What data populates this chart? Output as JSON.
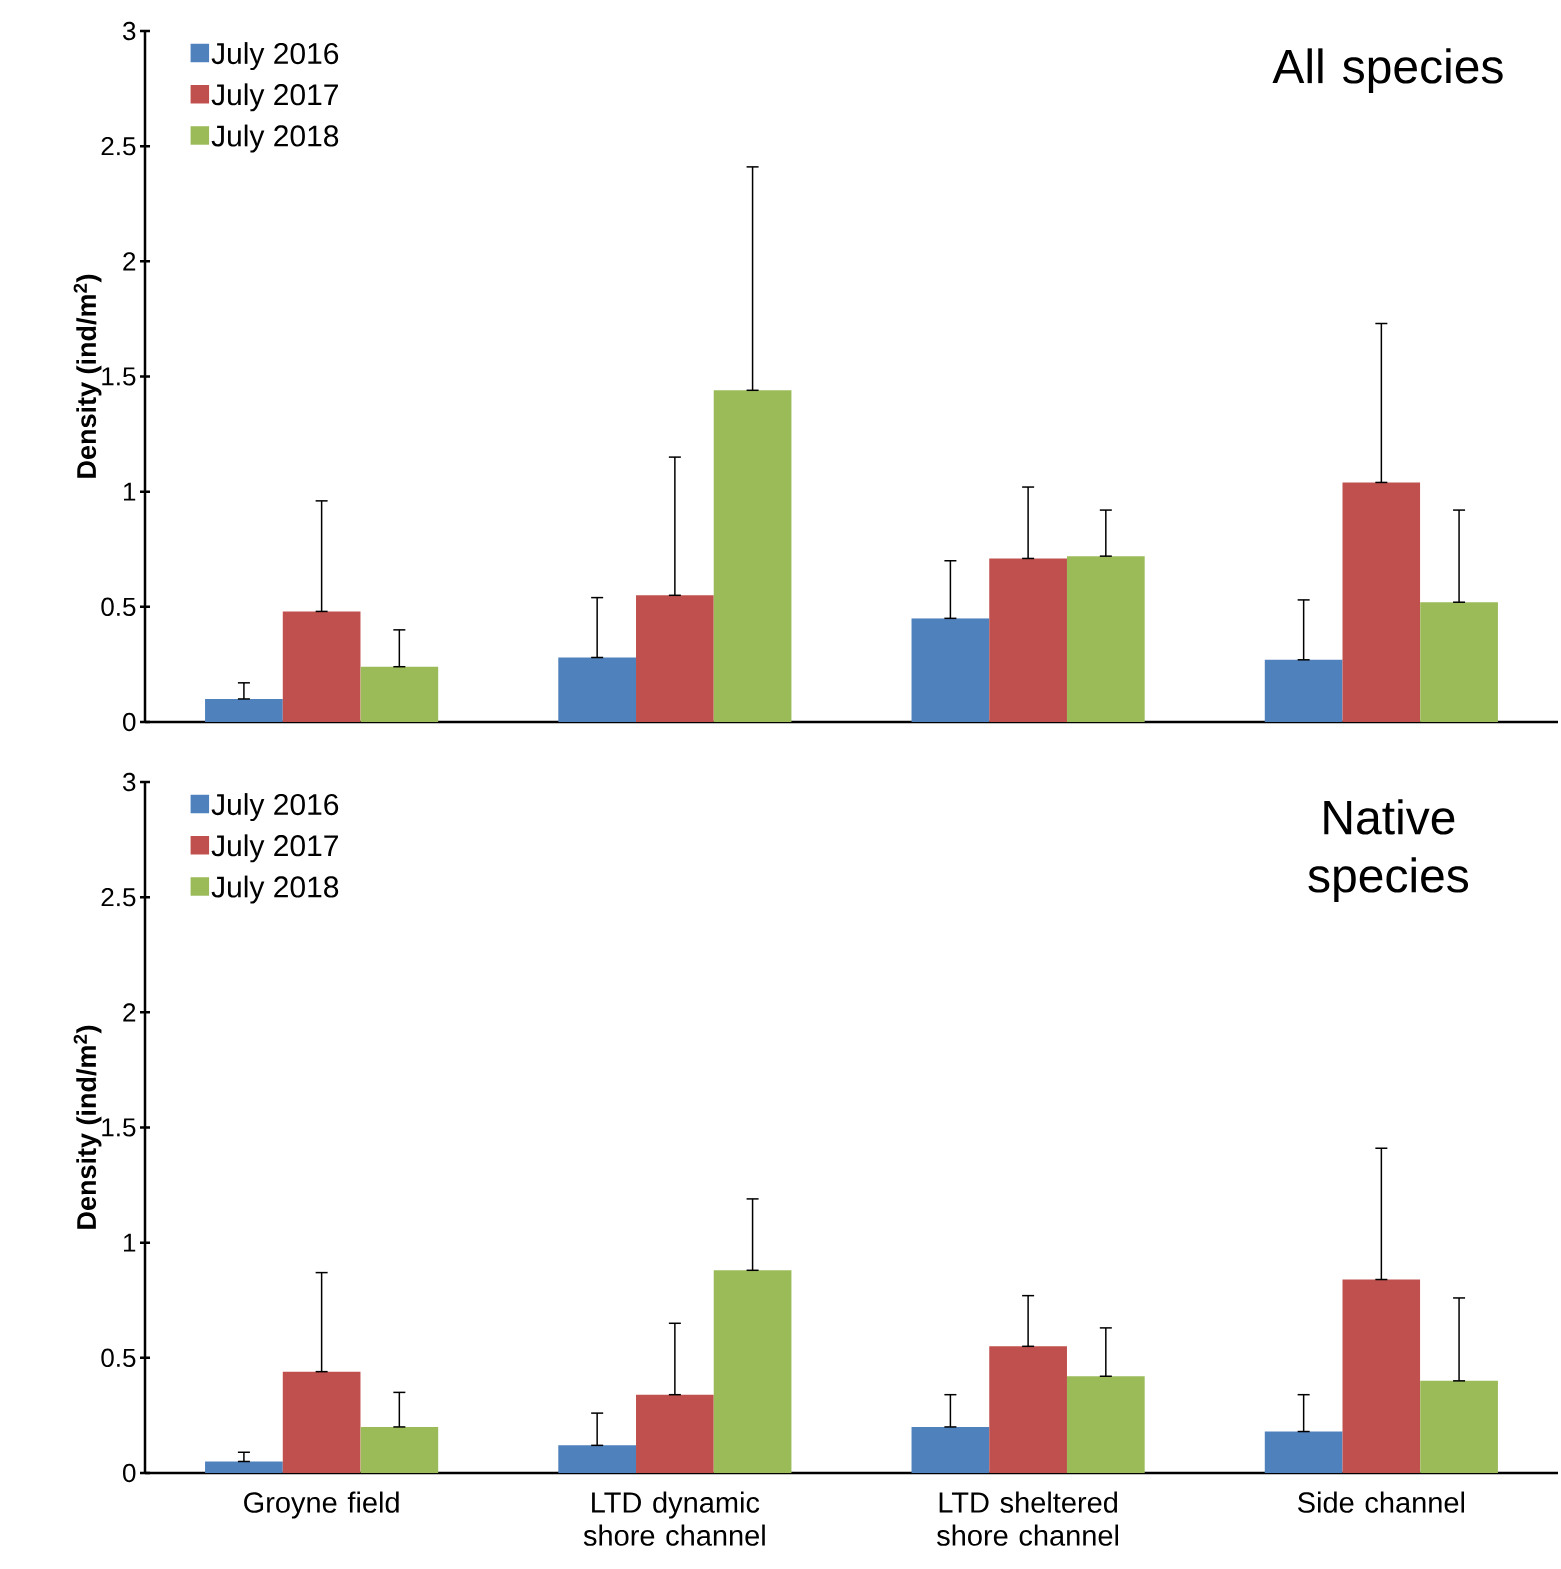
{
  "chart_data": [
    {
      "type": "bar",
      "title": "All species",
      "ylabel": "**Density (ind/m$^{2}$)**",
      "categories": [
        null,
        null,
        null,
        null
      ],
      "tick_labels": "y",
      "legend": "top left",
      "ylim": [
        0,
        3
      ],
      "yticks": [
        0,
        0.5,
        1,
        1.5,
        2,
        2.5,
        3
      ],
      "series": [
        {
          "name": "July 2016",
          "color": "#4f81bd",
          "values": [
            0.1,
            0.28,
            0.45,
            0.27
          ],
          "errors": [
            [
              0.1,
              0.17
            ],
            [
              0.28,
              0.54
            ],
            [
              0.45,
              0.7
            ],
            [
              0.27,
              0.53
            ]
          ]
        },
        {
          "name": "July 2017",
          "color": "#c0504d",
          "values": [
            0.48,
            0.55,
            0.71,
            1.04
          ],
          "errors": [
            [
              0.48,
              0.96
            ],
            [
              0.55,
              1.15
            ],
            [
              0.71,
              1.02
            ],
            [
              1.04,
              1.73
            ]
          ]
        },
        {
          "name": "July 2018",
          "color": "#9bbb59",
          "values": [
            0.24,
            1.44,
            0.72,
            0.52
          ],
          "errors": [
            [
              0.24,
              0.4
            ],
            [
              1.44,
              2.41
            ],
            [
              0.72,
              0.92
            ],
            [
              0.52,
              0.92
            ]
          ]
        }
      ]
    },
    {
      "type": "bar",
      "title": "Native species",
      "ylabel": "**Density (ind/m$^{2}$)**",
      "categories": [
        "Groyne field",
        "LTD dynamic shore channel",
        "LTD sheltered shore channel",
        "Side channel"
      ],
      "legend": "top left",
      "ylim": [
        0,
        3
      ],
      "yticks": [
        0,
        0.5,
        1,
        1.5,
        2,
        2.5,
        3
      ],
      "series": [
        {
          "name": "July 2016",
          "color": "#4f81bd",
          "values": [
            0.05,
            0.12,
            0.2,
            0.18
          ],
          "errors": [
            [
              0.05,
              0.09
            ],
            [
              0.12,
              0.26
            ],
            [
              0.2,
              0.34
            ],
            [
              0.18,
              0.34
            ]
          ]
        },
        {
          "name": "July 2017",
          "color": "#c0504d",
          "values": [
            0.44,
            0.34,
            0.55,
            0.84
          ],
          "errors": [
            [
              0.44,
              0.87
            ],
            [
              0.34,
              0.65
            ],
            [
              0.55,
              0.77
            ],
            [
              0.84,
              1.41
            ]
          ]
        },
        {
          "name": "July 2018",
          "color": "#9bbb59",
          "values": [
            0.2,
            0.88,
            0.42,
            0.4
          ],
          "errors": [
            [
              0.2,
              0.35
            ],
            [
              0.88,
              1.19
            ],
            [
              0.42,
              0.63
            ],
            [
              0.4,
              0.76
            ]
          ]
        }
      ]
    }
  ]
}
